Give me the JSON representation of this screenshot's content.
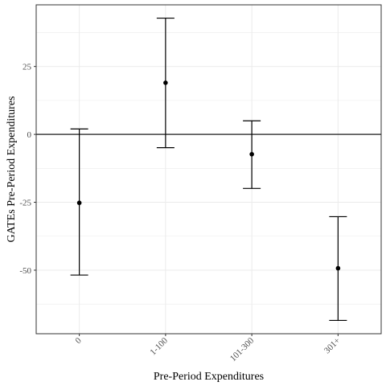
{
  "chart_data": {
    "type": "scatter",
    "subtype": "point-with-error-bars",
    "xlabel": "Pre-Period Expenditures",
    "ylabel": "GATEs Pre-Period Expenditures",
    "categories": [
      "0",
      "1-100",
      "101-300",
      "301+"
    ],
    "points": [
      {
        "category": "0",
        "estimate": -25.2,
        "lower": -51.8,
        "upper": 2.0
      },
      {
        "category": "1-100",
        "estimate": 19.0,
        "lower": -4.9,
        "upper": 42.8
      },
      {
        "category": "101-300",
        "estimate": -7.3,
        "lower": -19.9,
        "upper": 5.0
      },
      {
        "category": "301+",
        "estimate": -49.3,
        "lower": -68.5,
        "upper": -30.3
      }
    ],
    "yticks": [
      25,
      0,
      -25,
      -50
    ],
    "ytick_labels": [
      "25",
      "0",
      "-25",
      "-50"
    ],
    "ylim": [
      -73.4,
      47.7
    ],
    "reference_line_y": 0,
    "grid": true,
    "colors": {
      "points": "#000000",
      "error_bars": "#000000",
      "reference_line": "#000000",
      "grid": "#ebebeb",
      "panel_border": "#333333"
    }
  }
}
